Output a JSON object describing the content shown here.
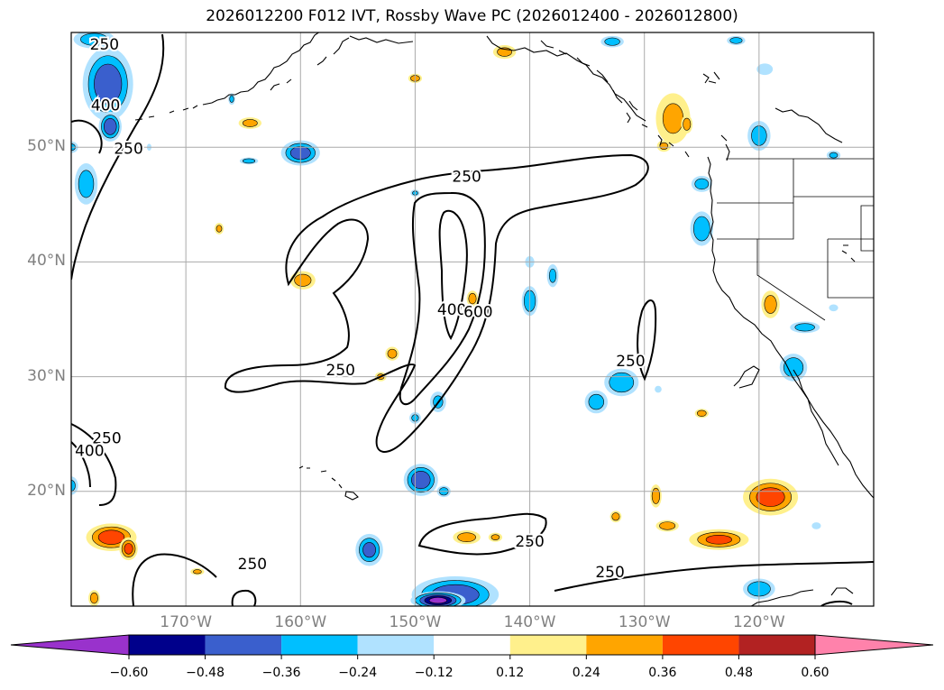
{
  "title": "2026012200 F012 IVT, Rossby Wave PC (2026012400 - 2026012800)",
  "map": {
    "lon_range": [
      -180,
      -110
    ],
    "lat_range": [
      10,
      60
    ],
    "lat_labels": [
      {
        "lat": 50,
        "text": "50°N"
      },
      {
        "lat": 40,
        "text": "40°N"
      },
      {
        "lat": 30,
        "text": "30°N"
      },
      {
        "lat": 20,
        "text": "20°N"
      }
    ],
    "lon_labels": [
      {
        "lon": -170,
        "text": "170°W"
      },
      {
        "lon": -160,
        "text": "160°W"
      },
      {
        "lon": -150,
        "text": "150°W"
      },
      {
        "lon": -140,
        "text": "140°W"
      },
      {
        "lon": -130,
        "text": "130°W"
      },
      {
        "lon": -120,
        "text": "120°W"
      }
    ],
    "ivt_contour_labels": [
      {
        "text": "250",
        "lon": -177.1,
        "lat": 58.9
      },
      {
        "text": "400",
        "lon": -177.0,
        "lat": 53.6
      },
      {
        "text": "250",
        "lon": -175.0,
        "lat": 49.8
      },
      {
        "text": "250",
        "lon": -145.5,
        "lat": 47.4
      },
      {
        "text": "400",
        "lon": -146.8,
        "lat": 35.8
      },
      {
        "text": "600",
        "lon": -144.5,
        "lat": 35.6
      },
      {
        "text": "250",
        "lon": -156.5,
        "lat": 30.5
      },
      {
        "text": "250",
        "lon": -131.2,
        "lat": 31.3
      },
      {
        "text": "250",
        "lon": -176.9,
        "lat": 24.6
      },
      {
        "text": "400",
        "lon": -178.4,
        "lat": 23.5
      },
      {
        "text": "250",
        "lon": -140.0,
        "lat": 15.6
      },
      {
        "text": "250",
        "lon": -133.0,
        "lat": 12.9
      },
      {
        "text": "250",
        "lon": -164.2,
        "lat": 13.6
      }
    ]
  },
  "colorbar": {
    "levels": [
      -0.72,
      -0.6,
      -0.48,
      -0.36,
      -0.24,
      -0.12,
      0.12,
      0.24,
      0.36,
      0.48,
      0.6,
      0.72
    ],
    "colors": [
      "#9932cc",
      "#00008b",
      "#3a5fcd",
      "#00bfff",
      "#b0e2ff",
      "#ffffff",
      "#fff08c",
      "#ffa500",
      "#ff4500",
      "#b22222",
      "#ff82ab"
    ],
    "tick_labels": [
      "−0.60",
      "−0.48",
      "−0.36",
      "−0.24",
      "−0.12",
      "0.12",
      "0.24",
      "0.36",
      "0.48",
      "0.60"
    ],
    "extend": "both"
  },
  "anomaly_blobs": [
    {
      "lon": -176.8,
      "lat": 55.5,
      "rx": 2.2,
      "ry": 3.2,
      "v": -0.45
    },
    {
      "lon": -176.6,
      "lat": 51.8,
      "rx": 1.0,
      "ry": 1.3,
      "v": -0.45
    },
    {
      "lon": -178.0,
      "lat": 59.4,
      "rx": 1.8,
      "ry": 0.8,
      "v": -0.3
    },
    {
      "lon": -178.7,
      "lat": 46.8,
      "rx": 1.0,
      "ry": 1.8,
      "v": -0.3
    },
    {
      "lon": -180.0,
      "lat": 50.0,
      "rx": 0.6,
      "ry": 0.5,
      "v": -0.25
    },
    {
      "lon": -160.0,
      "lat": 49.5,
      "rx": 1.7,
      "ry": 1.1,
      "v": -0.42
    },
    {
      "lon": -164.5,
      "lat": 48.8,
      "rx": 0.8,
      "ry": 0.3,
      "v": -0.3
    },
    {
      "lon": -173.2,
      "lat": 50.0,
      "rx": 0.2,
      "ry": 0.3,
      "v": -0.2
    },
    {
      "lon": -166.0,
      "lat": 54.2,
      "rx": 0.3,
      "ry": 0.5,
      "v": -0.25
    },
    {
      "lon": -164.4,
      "lat": 52.1,
      "rx": 1.0,
      "ry": 0.5,
      "v": 0.28
    },
    {
      "lon": -167.1,
      "lat": 42.9,
      "rx": 0.4,
      "ry": 0.5,
      "v": 0.25
    },
    {
      "lon": -159.8,
      "lat": 38.4,
      "rx": 1.1,
      "ry": 0.8,
      "v": 0.3
    },
    {
      "lon": -150.0,
      "lat": 56.0,
      "rx": 0.6,
      "ry": 0.4,
      "v": 0.3
    },
    {
      "lon": -142.2,
      "lat": 58.3,
      "rx": 1.0,
      "ry": 0.6,
      "v": 0.28
    },
    {
      "lon": -132.8,
      "lat": 59.2,
      "rx": 1.0,
      "ry": 0.5,
      "v": -0.3
    },
    {
      "lon": -122.0,
      "lat": 59.3,
      "rx": 0.8,
      "ry": 0.4,
      "v": -0.3
    },
    {
      "lon": -119.5,
      "lat": 56.8,
      "rx": 0.7,
      "ry": 0.5,
      "v": -0.2
    },
    {
      "lon": -120.0,
      "lat": 51.0,
      "rx": 1.0,
      "ry": 1.3,
      "v": -0.3
    },
    {
      "lon": -127.5,
      "lat": 52.5,
      "rx": 1.5,
      "ry": 2.2,
      "v": 0.25
    },
    {
      "lon": -126.3,
      "lat": 52.0,
      "rx": 0.5,
      "ry": 0.8,
      "v": 0.3
    },
    {
      "lon": -128.3,
      "lat": 50.1,
      "rx": 0.6,
      "ry": 0.5,
      "v": 0.25
    },
    {
      "lon": -113.5,
      "lat": 49.3,
      "rx": 0.6,
      "ry": 0.4,
      "v": -0.25
    },
    {
      "lon": -125.0,
      "lat": 46.8,
      "rx": 0.9,
      "ry": 0.7,
      "v": -0.3
    },
    {
      "lon": -125.0,
      "lat": 42.9,
      "rx": 1.0,
      "ry": 1.5,
      "v": -0.35
    },
    {
      "lon": -140.0,
      "lat": 40.0,
      "rx": 0.4,
      "ry": 0.5,
      "v": -0.2
    },
    {
      "lon": -138.0,
      "lat": 38.8,
      "rx": 0.5,
      "ry": 1.0,
      "v": -0.25
    },
    {
      "lon": -140.0,
      "lat": 36.6,
      "rx": 0.7,
      "ry": 1.3,
      "v": -0.35
    },
    {
      "lon": -145.0,
      "lat": 36.8,
      "rx": 0.5,
      "ry": 0.7,
      "v": 0.3
    },
    {
      "lon": -150.0,
      "lat": 46.0,
      "rx": 0.4,
      "ry": 0.3,
      "v": -0.25
    },
    {
      "lon": -119.0,
      "lat": 36.3,
      "rx": 0.8,
      "ry": 1.2,
      "v": 0.3
    },
    {
      "lon": -116.0,
      "lat": 34.3,
      "rx": 1.3,
      "ry": 0.5,
      "v": -0.3
    },
    {
      "lon": -117.0,
      "lat": 30.8,
      "rx": 1.2,
      "ry": 1.2,
      "v": -0.35
    },
    {
      "lon": -113.5,
      "lat": 36.0,
      "rx": 0.4,
      "ry": 0.3,
      "v": -0.2
    },
    {
      "lon": -132.0,
      "lat": 29.5,
      "rx": 1.5,
      "ry": 1.2,
      "v": -0.35
    },
    {
      "lon": -134.2,
      "lat": 27.8,
      "rx": 1.0,
      "ry": 1.0,
      "v": -0.3
    },
    {
      "lon": -128.8,
      "lat": 28.9,
      "rx": 0.3,
      "ry": 0.3,
      "v": -0.2
    },
    {
      "lon": -125.0,
      "lat": 26.8,
      "rx": 0.6,
      "ry": 0.4,
      "v": 0.3
    },
    {
      "lon": -148.0,
      "lat": 27.8,
      "rx": 0.7,
      "ry": 0.9,
      "v": -0.25
    },
    {
      "lon": -150.0,
      "lat": 26.4,
      "rx": 0.5,
      "ry": 0.5,
      "v": -0.25
    },
    {
      "lon": -152.0,
      "lat": 32.0,
      "rx": 0.6,
      "ry": 0.6,
      "v": 0.3
    },
    {
      "lon": -153.0,
      "lat": 30.0,
      "rx": 0.5,
      "ry": 0.4,
      "v": 0.25
    },
    {
      "lon": -149.5,
      "lat": 21.0,
      "rx": 1.5,
      "ry": 1.4,
      "v": -0.45
    },
    {
      "lon": -147.5,
      "lat": 20.0,
      "rx": 0.6,
      "ry": 0.5,
      "v": -0.3
    },
    {
      "lon": -119.0,
      "lat": 19.5,
      "rx": 2.4,
      "ry": 1.6,
      "v": 0.42
    },
    {
      "lon": -129.0,
      "lat": 19.6,
      "rx": 0.5,
      "ry": 1.0,
      "v": 0.32
    },
    {
      "lon": -132.5,
      "lat": 17.8,
      "rx": 0.5,
      "ry": 0.5,
      "v": 0.3
    },
    {
      "lon": -128.0,
      "lat": 17.0,
      "rx": 1.0,
      "ry": 0.5,
      "v": 0.32
    },
    {
      "lon": -123.5,
      "lat": 15.8,
      "rx": 2.6,
      "ry": 0.9,
      "v": 0.36
    },
    {
      "lon": -115.0,
      "lat": 17.0,
      "rx": 0.4,
      "ry": 0.3,
      "v": -0.2
    },
    {
      "lon": -176.5,
      "lat": 16.0,
      "rx": 2.2,
      "ry": 1.2,
      "v": 0.42
    },
    {
      "lon": -175.0,
      "lat": 15.0,
      "rx": 0.8,
      "ry": 1.0,
      "v": 0.38
    },
    {
      "lon": -180.0,
      "lat": 20.5,
      "rx": 0.6,
      "ry": 0.8,
      "v": -0.25
    },
    {
      "lon": -178.0,
      "lat": 10.7,
      "rx": 0.5,
      "ry": 0.7,
      "v": 0.3
    },
    {
      "lon": -169.0,
      "lat": 13.0,
      "rx": 0.6,
      "ry": 0.3,
      "v": 0.25
    },
    {
      "lon": -145.5,
      "lat": 16.0,
      "rx": 1.2,
      "ry": 0.6,
      "v": 0.3
    },
    {
      "lon": -143.0,
      "lat": 16.0,
      "rx": 0.6,
      "ry": 0.4,
      "v": 0.25
    },
    {
      "lon": -154.0,
      "lat": 14.9,
      "rx": 1.2,
      "ry": 1.4,
      "v": -0.38
    },
    {
      "lon": -146.5,
      "lat": 11.0,
      "rx": 3.8,
      "ry": 1.6,
      "v": -0.45
    },
    {
      "lon": -148.0,
      "lat": 10.5,
      "rx": 2.4,
      "ry": 0.8,
      "v": -0.6
    },
    {
      "lon": -120.0,
      "lat": 11.5,
      "rx": 1.4,
      "ry": 0.9,
      "v": -0.35
    }
  ]
}
